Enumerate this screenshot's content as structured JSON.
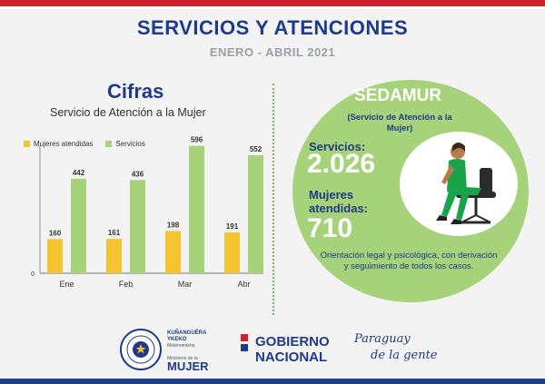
{
  "header": {
    "title": "SERVICIOS Y ATENCIONES",
    "subtitle": "ENERO - ABRIL 2021"
  },
  "left": {
    "heading": "Cifras",
    "chart_title": "Servicio de Atención a la Mujer"
  },
  "chart_data": {
    "type": "bar",
    "title": "Servicio de Atención a la Mujer",
    "categories": [
      "Ene",
      "Feb",
      "Mar",
      "Abr"
    ],
    "series": [
      {
        "name": "Mujeres atendidas",
        "values": [
          160,
          161,
          198,
          191
        ],
        "color": "#f4c430"
      },
      {
        "name": "Servicios",
        "values": [
          442,
          436,
          596,
          552
        ],
        "color": "#a6d279"
      }
    ],
    "xlabel": "",
    "ylabel": "",
    "ylim": [
      0,
      620
    ],
    "y_tick_labels": [
      "0"
    ],
    "grid": false,
    "legend": "top-left",
    "data_labels": true
  },
  "right": {
    "name": "SEDAMUR",
    "name_sub": "(Servicio de Atención a la Mujer)",
    "services_label": "Servicios:",
    "services_value": "2.026",
    "women_label_line1": "Mujeres",
    "women_label_line2": "atendidas:",
    "women_value": "710",
    "description": "Orientación legal y psicológica, con derivación y seguimiento de todos los casos."
  },
  "footer": {
    "ministry_line1": "KUÑANGUÉRA",
    "ministry_line2": "YKEKO",
    "ministry_line3": "Motenondeha",
    "ministry_line4": "Ministerio de la",
    "ministry_name": "MUJER",
    "gov_line1": "GOBIERNO",
    "gov_line2": "NACIONAL",
    "slogan_line1": "Paraguay",
    "slogan_line2": "de la gente"
  },
  "colors": {
    "primary": "#1e3a8a",
    "accent_red": "#d3202f",
    "green": "#a6d279",
    "yellow": "#f4c430"
  }
}
